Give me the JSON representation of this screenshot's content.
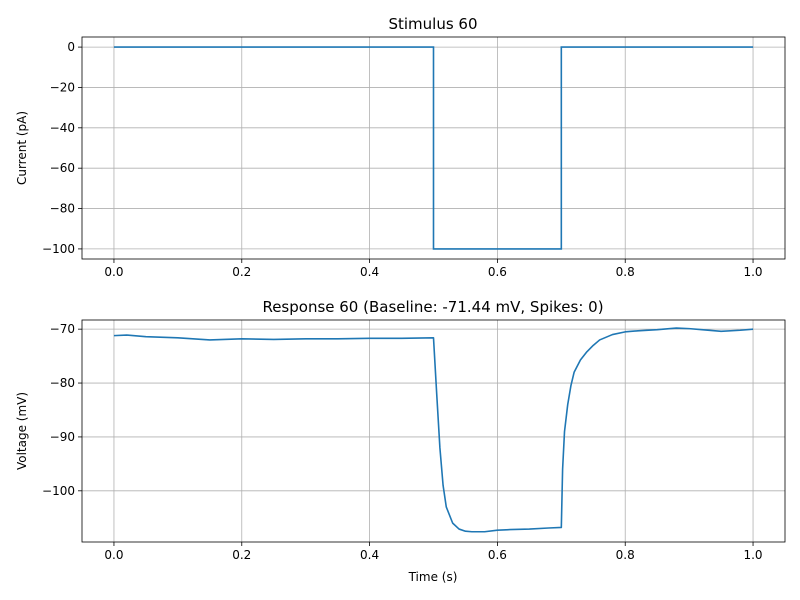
{
  "chart_data": [
    {
      "type": "line",
      "title": "Stimulus 60",
      "xlabel": "",
      "ylabel": "Current (pA)",
      "xlim": [
        -0.05,
        1.05
      ],
      "ylim": [
        -105,
        5
      ],
      "xticks": [
        0.0,
        0.2,
        0.4,
        0.6,
        0.8,
        1.0
      ],
      "xtick_labels": [
        "0.0",
        "0.2",
        "0.4",
        "0.6",
        "0.8",
        "1.0"
      ],
      "yticks": [
        0,
        -20,
        -40,
        -60,
        -80,
        -100
      ],
      "ytick_labels": [
        "0",
        "−20",
        "−40",
        "−60",
        "−80",
        "−100"
      ],
      "grid": true,
      "line_color": "#1f77b4",
      "series": [
        {
          "x": [
            0.0,
            0.5,
            0.5,
            0.7,
            0.7,
            1.0
          ],
          "y": [
            0,
            0,
            -100,
            -100,
            0,
            0
          ]
        }
      ]
    },
    {
      "type": "line",
      "title": "Response 60 (Baseline: -71.44 mV, Spikes: 0)",
      "xlabel": "Time (s)",
      "ylabel": "Voltage (mV)",
      "xlim": [
        -0.05,
        1.05
      ],
      "ylim": [
        -109.5,
        -68.3
      ],
      "xticks": [
        0.0,
        0.2,
        0.4,
        0.6,
        0.8,
        1.0
      ],
      "xtick_labels": [
        "0.0",
        "0.2",
        "0.4",
        "0.6",
        "0.8",
        "1.0"
      ],
      "yticks": [
        -70,
        -80,
        -90,
        -100
      ],
      "ytick_labels": [
        "−70",
        "−80",
        "−90",
        "−100"
      ],
      "grid": true,
      "line_color": "#1f77b4",
      "series": [
        {
          "x": [
            0.0,
            0.02,
            0.05,
            0.1,
            0.15,
            0.2,
            0.25,
            0.3,
            0.35,
            0.4,
            0.45,
            0.5,
            0.505,
            0.51,
            0.515,
            0.52,
            0.53,
            0.54,
            0.55,
            0.56,
            0.58,
            0.6,
            0.62,
            0.65,
            0.68,
            0.7,
            0.702,
            0.705,
            0.71,
            0.715,
            0.72,
            0.73,
            0.74,
            0.75,
            0.76,
            0.78,
            0.8,
            0.82,
            0.85,
            0.88,
            0.9,
            0.92,
            0.95,
            0.98,
            1.0
          ],
          "y": [
            -71.2,
            -71.1,
            -71.4,
            -71.6,
            -72.0,
            -71.8,
            -71.9,
            -71.8,
            -71.8,
            -71.7,
            -71.7,
            -71.6,
            -82.0,
            -92.0,
            -99.0,
            -103.0,
            -106.0,
            -107.1,
            -107.5,
            -107.6,
            -107.6,
            -107.3,
            -107.2,
            -107.1,
            -106.9,
            -106.8,
            -96.0,
            -89.0,
            -84.0,
            -80.5,
            -78.0,
            -75.7,
            -74.2,
            -73.0,
            -72.0,
            -71.0,
            -70.5,
            -70.3,
            -70.1,
            -69.8,
            -69.9,
            -70.1,
            -70.4,
            -70.2,
            -70.0
          ]
        }
      ]
    }
  ]
}
